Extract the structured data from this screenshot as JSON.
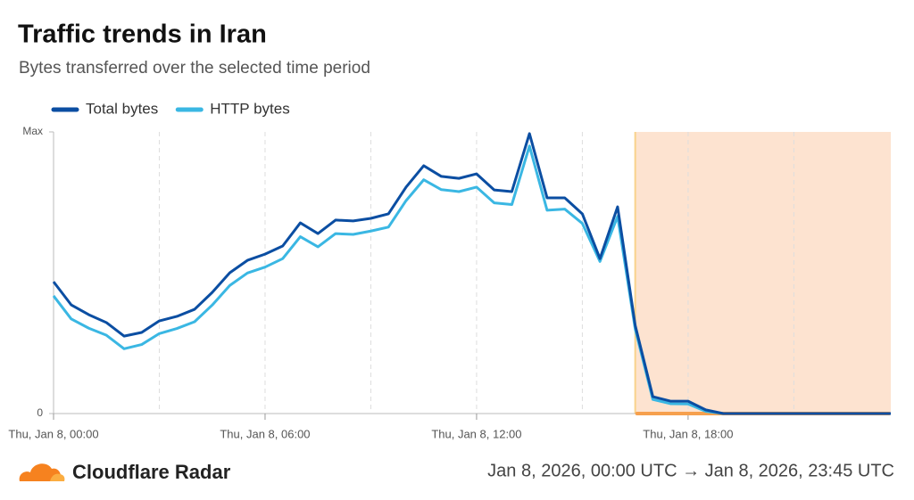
{
  "chart_data": {
    "type": "line",
    "title": "Traffic trends in Iran",
    "subtitle": "Bytes transferred over the selected time period",
    "x": [
      0,
      0.5,
      1,
      1.5,
      2,
      2.5,
      3,
      3.5,
      4,
      4.5,
      5,
      5.5,
      6,
      6.5,
      7,
      7.5,
      8,
      8.5,
      9,
      9.5,
      10,
      10.5,
      11,
      11.5,
      12,
      12.5,
      13,
      13.5,
      14,
      14.5,
      15,
      15.5,
      16,
      16.5,
      17,
      17.5,
      18,
      18.5,
      19,
      19.5,
      20,
      20.5,
      21,
      21.5,
      22,
      22.5,
      23,
      23.5,
      23.75
    ],
    "series": [
      {
        "name": "Total bytes",
        "color": "#0b4ea2",
        "values": [
          46.8,
          38.6,
          35.1,
          32.3,
          27.5,
          28.8,
          32.9,
          34.5,
          37.0,
          43.0,
          50.0,
          54.4,
          56.6,
          59.5,
          67.7,
          63.9,
          68.7,
          68.4,
          69.3,
          70.9,
          80.4,
          88.0,
          84.2,
          83.5,
          85.1,
          79.4,
          78.8,
          99.4,
          76.6,
          76.6,
          70.9,
          55.0,
          73.4,
          31.3,
          6.0,
          4.4,
          4.4,
          1.3,
          0,
          0,
          0,
          0,
          0,
          0,
          0,
          0,
          0,
          0,
          0
        ]
      },
      {
        "name": "HTTP bytes",
        "color": "#3ab7e3",
        "values": [
          41.8,
          33.6,
          30.3,
          27.8,
          23.0,
          24.5,
          28.4,
          30.2,
          32.6,
          38.5,
          45.5,
          49.9,
          52.0,
          55.0,
          62.8,
          59.2,
          63.9,
          63.6,
          64.8,
          66.2,
          75.6,
          83.0,
          79.5,
          78.8,
          80.4,
          74.8,
          74.2,
          95.0,
          72.2,
          72.6,
          67.5,
          54.0,
          70.0,
          30.0,
          5.0,
          3.5,
          3.4,
          0.8,
          0,
          0,
          0,
          0,
          0,
          0,
          0,
          0,
          0,
          0,
          0
        ]
      }
    ],
    "xlim": [
      0,
      23.75
    ],
    "xticks": [
      {
        "value": 0,
        "label": "Thu, Jan 8, 00:00"
      },
      {
        "value": 6,
        "label": "Thu, Jan 8, 06:00"
      },
      {
        "value": 12,
        "label": "Thu, Jan 8, 12:00"
      },
      {
        "value": 18,
        "label": "Thu, Jan 8, 18:00"
      }
    ],
    "minor_xticks": [
      3,
      9,
      15,
      21
    ],
    "ylim": [
      0,
      100
    ],
    "yticks": [
      0,
      {
        "value": 100,
        "label": "Max"
      }
    ],
    "shaded_range": {
      "from": 16.5,
      "to": 23.75,
      "color": "#fde3d0",
      "bar_color": "#f6a04d"
    },
    "brand": "Cloudflare Radar",
    "date_range": "Jan 8, 2026, 00:00 UTC → Jan 8, 2026, 23:45 UTC"
  }
}
